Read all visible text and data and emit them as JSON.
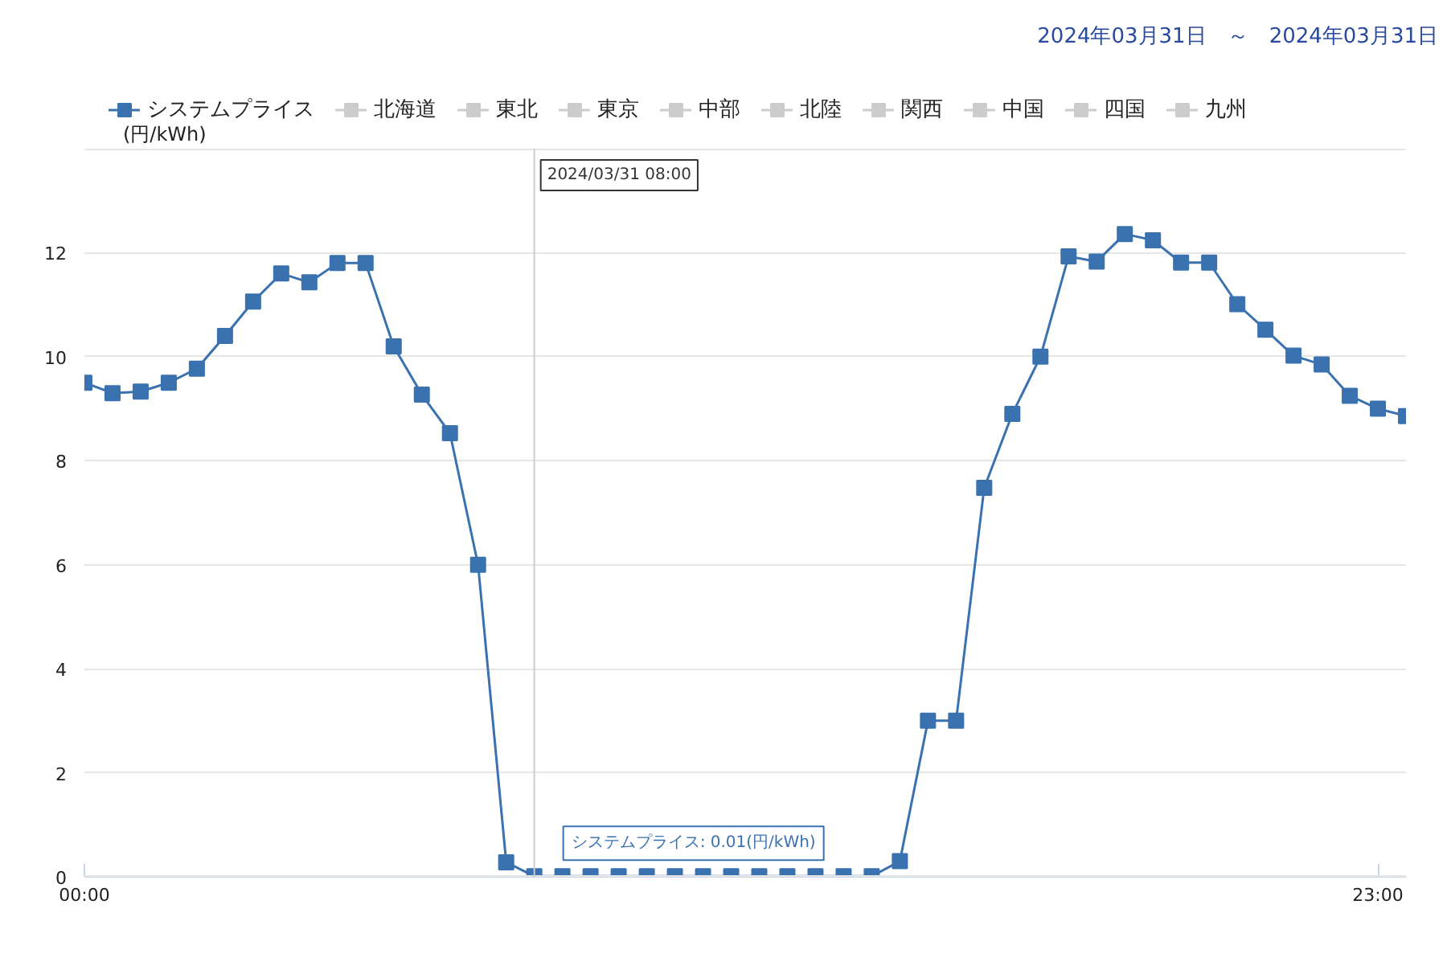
{
  "chart_data": {
    "type": "line",
    "subtitle": "2024年03月31日　～　2024年03月31日",
    "ylabel": "(円/kWh)",
    "x": [
      0,
      0.5,
      1,
      1.5,
      2,
      2.5,
      3,
      3.5,
      4,
      4.5,
      5,
      5.5,
      6,
      6.5,
      7,
      7.5,
      8,
      8.5,
      9,
      9.5,
      10,
      10.5,
      11,
      11.5,
      12,
      12.5,
      13,
      13.5,
      14,
      14.5,
      15,
      15.5,
      16,
      16.5,
      17,
      17.5,
      18,
      18.5,
      19,
      19.5,
      20,
      20.5,
      21,
      21.5,
      22,
      22.5,
      23,
      23.5
    ],
    "series": [
      {
        "name": "システムプライス",
        "color": "#3a72b0",
        "values": [
          9.5,
          9.3,
          9.33,
          9.5,
          9.77,
          10.4,
          11.06,
          11.6,
          11.43,
          11.8,
          11.8,
          10.2,
          9.27,
          8.53,
          6.0,
          0.28,
          0.01,
          0.01,
          0.01,
          0.01,
          0.01,
          0.01,
          0.01,
          0.01,
          0.01,
          0.01,
          0.01,
          0.01,
          0.01,
          0.3,
          3.0,
          3.0,
          7.48,
          8.9,
          10.0,
          11.93,
          11.83,
          12.36,
          12.24,
          11.81,
          11.81,
          11.01,
          10.52,
          10.02,
          9.85,
          9.25,
          9.0,
          8.86
        ]
      },
      {
        "name": "北海道",
        "color": "#cccccc",
        "values": [
          null,
          null,
          null,
          null,
          null,
          null,
          null,
          null,
          null,
          null,
          null,
          null,
          null,
          null,
          null,
          null,
          null,
          null,
          null,
          null,
          null,
          null,
          null,
          null,
          null,
          null,
          null,
          null,
          null,
          null,
          null,
          null,
          null,
          null,
          null,
          null,
          null,
          null,
          null,
          null,
          null,
          null,
          null,
          null,
          null,
          null,
          null,
          null
        ]
      },
      {
        "name": "東北",
        "color": "#cccccc",
        "values": [
          null,
          null,
          null,
          null,
          null,
          null,
          null,
          null,
          null,
          null,
          null,
          null,
          null,
          null,
          null,
          null,
          null,
          null,
          null,
          null,
          null,
          null,
          null,
          null,
          null,
          null,
          null,
          null,
          null,
          null,
          null,
          null,
          null,
          null,
          null,
          null,
          null,
          null,
          null,
          null,
          null,
          null,
          null,
          null,
          null,
          null,
          null,
          null
        ]
      },
      {
        "name": "東京",
        "color": "#cccccc",
        "values": [
          null,
          null,
          null,
          null,
          null,
          null,
          null,
          null,
          null,
          null,
          null,
          null,
          null,
          null,
          null,
          null,
          null,
          null,
          null,
          null,
          null,
          null,
          null,
          null,
          null,
          null,
          null,
          null,
          null,
          null,
          null,
          null,
          null,
          null,
          null,
          null,
          null,
          null,
          null,
          null,
          null,
          null,
          null,
          null,
          null,
          null,
          null,
          null
        ]
      },
      {
        "name": "中部",
        "color": "#cccccc",
        "values": [
          null,
          null,
          null,
          null,
          null,
          null,
          null,
          null,
          null,
          null,
          null,
          null,
          null,
          null,
          null,
          null,
          null,
          null,
          null,
          null,
          null,
          null,
          null,
          null,
          null,
          null,
          null,
          null,
          null,
          null,
          null,
          null,
          null,
          null,
          null,
          null,
          null,
          null,
          null,
          null,
          null,
          null,
          null,
          null,
          null,
          null,
          null,
          null
        ]
      },
      {
        "name": "北陸",
        "color": "#cccccc",
        "values": [
          null,
          null,
          null,
          null,
          null,
          null,
          null,
          null,
          null,
          null,
          null,
          null,
          null,
          null,
          null,
          null,
          null,
          null,
          null,
          null,
          null,
          null,
          null,
          null,
          null,
          null,
          null,
          null,
          null,
          null,
          null,
          null,
          null,
          null,
          null,
          null,
          null,
          null,
          null,
          null,
          null,
          null,
          null,
          null,
          null,
          null,
          null,
          null
        ]
      },
      {
        "name": "関西",
        "color": "#cccccc",
        "values": [
          null,
          null,
          null,
          null,
          null,
          null,
          null,
          null,
          null,
          null,
          null,
          null,
          null,
          null,
          null,
          null,
          null,
          null,
          null,
          null,
          null,
          null,
          null,
          null,
          null,
          null,
          null,
          null,
          null,
          null,
          null,
          null,
          null,
          null,
          null,
          null,
          null,
          null,
          null,
          null,
          null,
          null,
          null,
          null,
          null,
          null,
          null,
          null
        ]
      },
      {
        "name": "中国",
        "color": "#cccccc",
        "values": [
          null,
          null,
          null,
          null,
          null,
          null,
          null,
          null,
          null,
          null,
          null,
          null,
          null,
          null,
          null,
          null,
          null,
          null,
          null,
          null,
          null,
          null,
          null,
          null,
          null,
          null,
          null,
          null,
          null,
          null,
          null,
          null,
          null,
          null,
          null,
          null,
          null,
          null,
          null,
          null,
          null,
          null,
          null,
          null,
          null,
          null,
          null,
          null
        ]
      },
      {
        "name": "四国",
        "color": "#cccccc",
        "values": [
          null,
          null,
          null,
          null,
          null,
          null,
          null,
          null,
          null,
          null,
          null,
          null,
          null,
          null,
          null,
          null,
          null,
          null,
          null,
          null,
          null,
          null,
          null,
          null,
          null,
          null,
          null,
          null,
          null,
          null,
          null,
          null,
          null,
          null,
          null,
          null,
          null,
          null,
          null,
          null,
          null,
          null,
          null,
          null,
          null,
          null,
          null,
          null
        ]
      },
      {
        "name": "九州",
        "color": "#cccccc",
        "values": [
          null,
          null,
          null,
          null,
          null,
          null,
          null,
          null,
          null,
          null,
          null,
          null,
          null,
          null,
          null,
          null,
          null,
          null,
          null,
          null,
          null,
          null,
          null,
          null,
          null,
          null,
          null,
          null,
          null,
          null,
          null,
          null,
          null,
          null,
          null,
          null,
          null,
          null,
          null,
          null,
          null,
          null,
          null,
          null,
          null,
          null,
          null,
          null
        ]
      }
    ],
    "xlim": [
      0,
      23.5
    ],
    "xticks": [
      {
        "value": 0,
        "label": "00:00"
      },
      {
        "value": 23,
        "label": "23:00"
      }
    ],
    "ylim": [
      0,
      14
    ],
    "yticks": [
      0,
      2,
      4,
      6,
      8,
      10,
      12,
      {
        "value": 14,
        "label": null
      }
    ],
    "grid": "y",
    "legend": "top",
    "marker": "square",
    "line_style": "solid",
    "ref_lines": [
      {
        "axis": "x",
        "value": 8,
        "label": "2024/03/31 08:00",
        "color": "#cccccc"
      }
    ],
    "annotations": [
      {
        "text": "システムプライス: 0.01(円/kWh)",
        "x": 8,
        "y": 0.01
      }
    ]
  }
}
